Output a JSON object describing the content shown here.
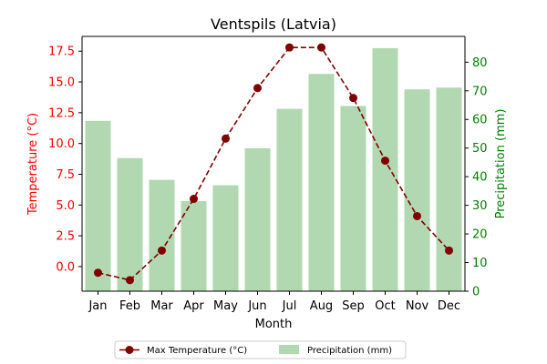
{
  "chart_data": {
    "type": "bar+line",
    "title": "Ventspils (Latvia)",
    "xlabel": "Month",
    "categories": [
      "Jan",
      "Feb",
      "Mar",
      "Apr",
      "May",
      "Jun",
      "Jul",
      "Aug",
      "Sep",
      "Oct",
      "Nov",
      "Dec"
    ],
    "left_axis": {
      "label": "Temperature (°C)",
      "color": "#ff0000",
      "ylim": [
        -2.0,
        18.7
      ],
      "ticks": [
        0.0,
        2.5,
        5.0,
        7.5,
        10.0,
        12.5,
        15.0,
        17.5
      ],
      "tick_labels": [
        "0.0",
        "2.5",
        "5.0",
        "7.5",
        "10.0",
        "12.5",
        "15.0",
        "17.5"
      ]
    },
    "right_axis": {
      "label": "Precipitation (mm)",
      "color": "#008000",
      "ylim": [
        0,
        89
      ],
      "ticks": [
        0,
        10,
        20,
        30,
        40,
        50,
        60,
        70,
        80
      ],
      "tick_labels": [
        "0",
        "10",
        "20",
        "30",
        "40",
        "50",
        "60",
        "70",
        "80"
      ]
    },
    "series": [
      {
        "name": "Max Temperature (°C)",
        "type": "line",
        "axis": "left",
        "color": "#800000",
        "line_style": "dashed",
        "marker": "circle",
        "values": [
          -0.5,
          -1.1,
          1.3,
          5.5,
          10.4,
          14.5,
          17.8,
          17.8,
          13.7,
          8.6,
          4.1,
          1.3
        ]
      },
      {
        "name": "Precipitation (mm)",
        "type": "bar",
        "axis": "right",
        "color": "#b1d8b1",
        "values": [
          59.5,
          46.5,
          38.9,
          31.5,
          37.0,
          49.9,
          63.7,
          75.9,
          64.7,
          84.9,
          70.5,
          71.1
        ]
      }
    ],
    "legend": {
      "placement": "bottom-center",
      "entries": [
        "Max Temperature (°C)",
        "Precipitation (mm)"
      ]
    },
    "grid": false
  }
}
